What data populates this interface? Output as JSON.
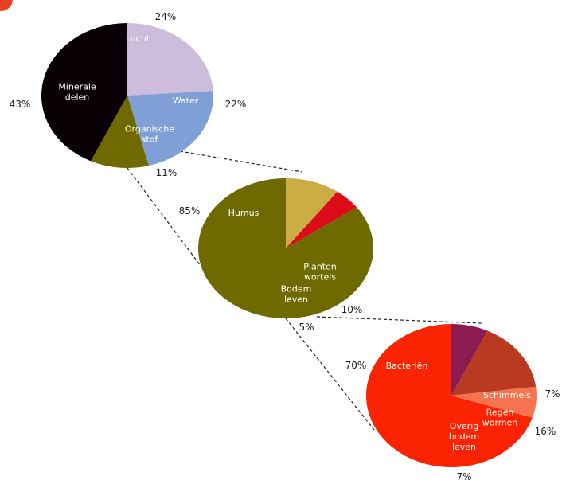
{
  "colors": {
    "badge": "#e8411f",
    "connector": "#222222"
  },
  "chart_data": [
    {
      "type": "pie",
      "slices": [
        {
          "label": "Lucht",
          "value": 24,
          "percent_label": "24%",
          "color": "#cdbcdc",
          "label_color": "#ffffff"
        },
        {
          "label": "Water",
          "value": 22,
          "percent_label": "22%",
          "color": "#7f9fd6",
          "label_color": "#ffffff"
        },
        {
          "label": "Organische stof",
          "value": 11,
          "percent_label": "11%",
          "color": "#6e6a00",
          "label_color": "#ffffff"
        },
        {
          "label": "Minerale delen",
          "value": 43,
          "percent_label": "43%",
          "color": "#080004",
          "label_color": "#ffffff"
        }
      ]
    },
    {
      "type": "pie",
      "slices": [
        {
          "label": "Planten wortels",
          "value": 10,
          "percent_label": "10%",
          "color": "#ccac45",
          "label_color": "#ffffff"
        },
        {
          "label": "Bodem leven",
          "value": 5,
          "percent_label": "5%",
          "color": "#dd0a18",
          "label_color": "#ffffff"
        },
        {
          "label": "Humus",
          "value": 85,
          "percent_label": "85%",
          "color": "#6e6a00",
          "label_color": "#ffffff"
        }
      ]
    },
    {
      "type": "pie",
      "slices": [
        {
          "label": "Schimmels",
          "value": 7,
          "percent_label": "7%",
          "color": "#8c1b52",
          "label_color": "#ffffff"
        },
        {
          "label": "Regen wormen",
          "value": 16,
          "percent_label": "16%",
          "color": "#b83a20",
          "label_color": "#ffffff"
        },
        {
          "label": "Overig bodem leven",
          "value": 7,
          "percent_label": "7%",
          "color": "#f5734e",
          "label_color": "#ffffff"
        },
        {
          "label": "Bacteriën",
          "value": 70,
          "percent_label": "70%",
          "color": "#fb2300",
          "label_color": "#ffffff"
        }
      ]
    }
  ]
}
